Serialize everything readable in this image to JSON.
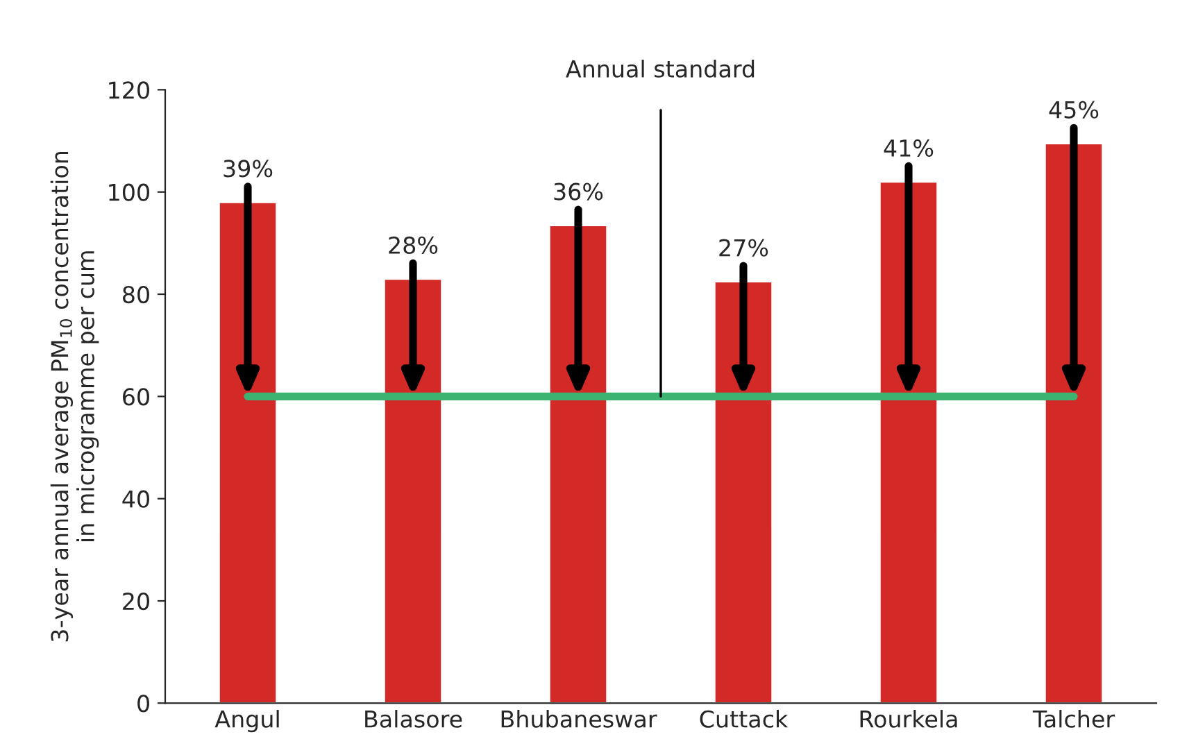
{
  "chart_data": {
    "type": "bar",
    "ylabel": "3-year annual average PM$_{10}$ concentration\nin microgramme per cum",
    "categories": [
      "Angul",
      "Balasore",
      "Bhubaneswar",
      "Cuttack",
      "Rourkela",
      "Talcher"
    ],
    "values": [
      98,
      83,
      93.5,
      82.5,
      102,
      109.5
    ],
    "color": "#d42a27",
    "ylim": [
      0,
      120
    ],
    "yticks": [
      0,
      20,
      40,
      60,
      80,
      100,
      120
    ],
    "ref_lines": [
      {
        "axis": "y",
        "value": 60,
        "color": "#3cb371"
      }
    ],
    "annotations": [
      "Annual standard",
      {
        "text": "39%",
        "x": "Angul",
        "y": 98
      },
      {
        "text": "28%",
        "x": "Balasore",
        "y": 83
      },
      {
        "text": "36%",
        "x": "Bhubaneswar",
        "y": 93.5
      },
      {
        "text": "27%",
        "x": "Cuttack",
        "y": 82.5
      },
      {
        "text": "41%",
        "x": "Rourkela",
        "y": 102
      },
      {
        "text": "45%",
        "x": "Talcher",
        "y": 109.5
      }
    ],
    "grid": false
  }
}
